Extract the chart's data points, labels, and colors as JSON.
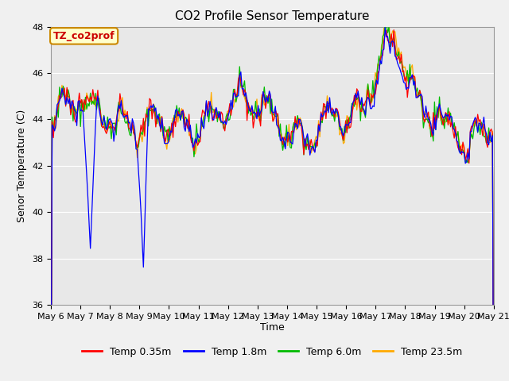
{
  "title": "CO2 Profile Sensor Temperature",
  "ylabel": "Senor Temperature (C)",
  "xlabel": "Time",
  "ylim": [
    36,
    48
  ],
  "label_text": "TZ_co2prof",
  "series": {
    "Temp 0.35m": {
      "color": "#ff0000",
      "zorder": 4
    },
    "Temp 1.8m": {
      "color": "#0000ff",
      "zorder": 5
    },
    "Temp 6.0m": {
      "color": "#00bb00",
      "zorder": 3
    },
    "Temp 23.5m": {
      "color": "#ffaa00",
      "zorder": 2
    }
  },
  "xtick_labels": [
    "May 6",
    "May 7",
    "May 8",
    "May 9",
    "May 10",
    "May 11",
    "May 12",
    "May 13",
    "May 14",
    "May 15",
    "May 16",
    "May 17",
    "May 18",
    "May 19",
    "May 20",
    "May 21"
  ],
  "bg_color": "#e8e8e8",
  "fig_bg_color": "#f0f0f0",
  "title_fontsize": 11,
  "axis_label_fontsize": 9,
  "tick_fontsize": 8,
  "legend_fontsize": 9
}
